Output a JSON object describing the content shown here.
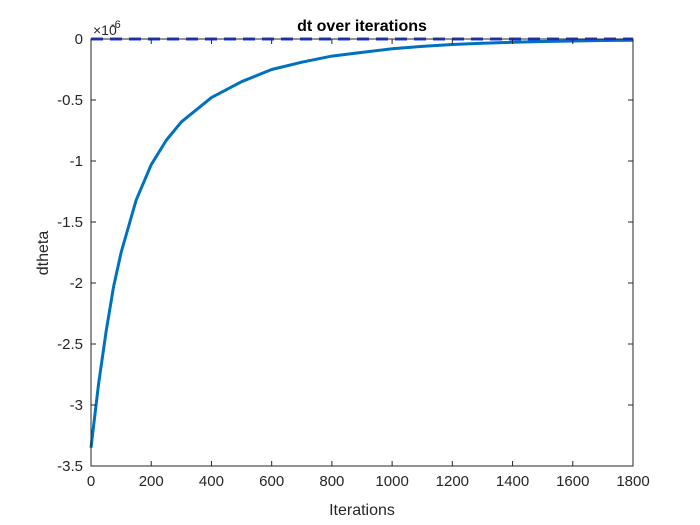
{
  "chart_data": {
    "type": "line",
    "title": "dt over iterations",
    "xlabel": "Iterations",
    "ylabel": "dtheta",
    "y_exponent_label": "×10",
    "y_exponent_power": "-6",
    "xlim": [
      0,
      1800
    ],
    "ylim": [
      -3.5e-06,
      0
    ],
    "x_ticks": [
      0,
      200,
      400,
      600,
      800,
      1000,
      1200,
      1400,
      1600,
      1800
    ],
    "x_tick_labels": [
      "0",
      "200",
      "400",
      "600",
      "800",
      "1000",
      "1200",
      "1400",
      "1600",
      "1800"
    ],
    "y_ticks": [
      0,
      -0.5,
      -1,
      -1.5,
      -2,
      -2.5,
      -3,
      -3.5
    ],
    "y_tick_labels": [
      "0",
      "-0.5",
      "-1",
      "-1.5",
      "-2",
      "-2.5",
      "-3",
      "-3.5"
    ],
    "grid": false,
    "box": true,
    "series": [
      {
        "style": "solid",
        "color": "#0072BD",
        "x": [
          0,
          25,
          50,
          75,
          100,
          150,
          200,
          250,
          300,
          400,
          500,
          600,
          700,
          800,
          900,
          1000,
          1100,
          1200,
          1300,
          1400,
          1500,
          1600,
          1700,
          1800
        ],
        "y": [
          -3.35e-06,
          -2.83e-06,
          -2.4e-06,
          -2.03e-06,
          -1.75e-06,
          -1.32e-06,
          -1.03e-06,
          -8.3e-07,
          -6.8e-07,
          -4.8e-07,
          -3.5e-07,
          -2.5e-07,
          -1.9e-07,
          -1.4e-07,
          -1.1e-07,
          -8e-08,
          -6e-08,
          -4.5e-08,
          -3.5e-08,
          -2.7e-08,
          -2e-08,
          -1.6e-08,
          -1.2e-08,
          -1e-08
        ]
      },
      {
        "style": "dashed",
        "color": "#1f3fff",
        "x": [
          0,
          1800
        ],
        "y": [
          0,
          0
        ]
      }
    ]
  }
}
